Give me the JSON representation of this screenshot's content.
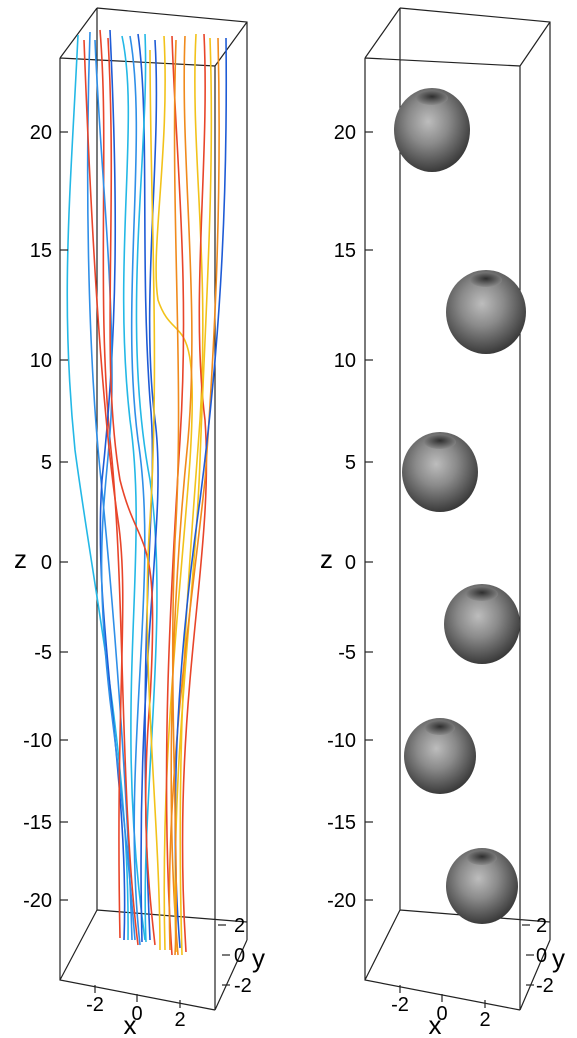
{
  "figure": {
    "panels": [
      {
        "id": "streamlines",
        "z_ticks": [
          "20",
          "15",
          "10",
          "5",
          "0",
          "-5",
          "-10",
          "-15",
          "-20"
        ],
        "x_ticks": [
          "-2",
          "0",
          "2"
        ],
        "y_ticks": [
          "2",
          "0",
          "-2"
        ],
        "z_label": "z",
        "x_label": "x",
        "y_label": "y"
      },
      {
        "id": "toroids",
        "z_ticks": [
          "20",
          "15",
          "10",
          "5",
          "0",
          "-5",
          "-10",
          "-15",
          "-20"
        ],
        "x_ticks": [
          "-2",
          "0",
          "2"
        ],
        "y_ticks": [
          "2",
          "0",
          "-2"
        ],
        "z_label": "z",
        "x_label": "x",
        "y_label": "y"
      }
    ],
    "colors": {
      "streamline_palette": [
        "#1e5bd6",
        "#2f8fe8",
        "#24b8e6",
        "#e8452a",
        "#f08a1c",
        "#f2c21a"
      ],
      "torus": "#6e6e6e",
      "box_edges": "#222222"
    }
  }
}
